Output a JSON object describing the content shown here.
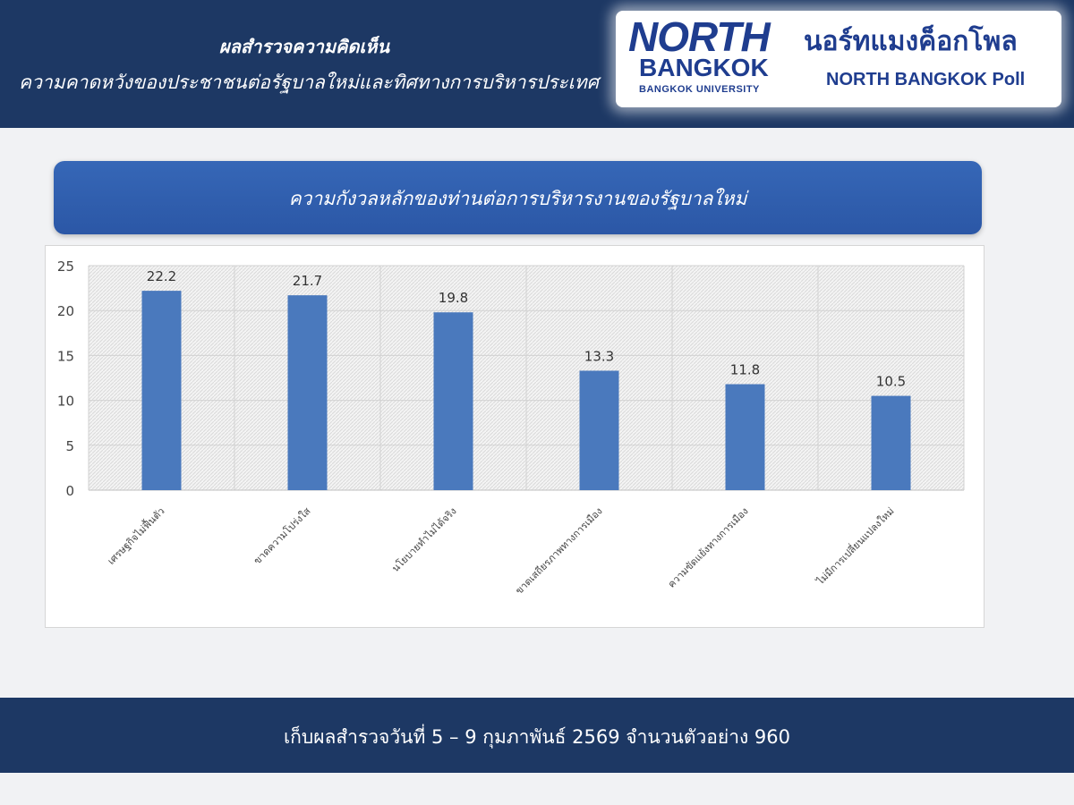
{
  "header": {
    "title": "ผลสำรวจความคิดเห็น",
    "subtitle": "ความคาดหวังของประชาชนต่อรัฐบาลใหม่และทิศทางการบริหารประเทศ"
  },
  "logo": {
    "north": "NORTH",
    "bangkok": "BANGKOK",
    "university": "BANGKOK UNIVERSITY",
    "thai_name": "นอร์ทแมงค็อกโพล",
    "english_name": "NORTH BANGKOK Poll"
  },
  "banner": {
    "title": "ความกังวลหลักของท่านต่อการบริหารงานของรัฐบาลใหม่"
  },
  "colors": {
    "header_bg": "#1d3864",
    "banner_bg": "#2f5eae",
    "bar": "#4a79bd"
  },
  "chart_data": {
    "type": "bar",
    "categories": [
      "เศรษฐกิจไม่ฟื้นตัว",
      "ขาดความโปร่งใส",
      "นโยบายทำไม่ได้จริง",
      "ขาดเสถียรภาพทางการเมือง",
      "ความขัดแย้งทางการเมือง",
      "ไม่มีการเปลี่ยนแปลงใหม่"
    ],
    "values": [
      22.2,
      21.7,
      19.8,
      13.3,
      11.8,
      10.5
    ],
    "value_labels": [
      "22.2",
      "21.7",
      "19.8",
      "13.3",
      "11.8",
      "10.5"
    ],
    "yticks": [
      0,
      5,
      10,
      15,
      20,
      25
    ],
    "ylim": [
      0,
      25
    ],
    "grid": true
  },
  "footer": {
    "text": "เก็บผลสำรวจวันที่  5 – 9 กุมภาพันธ์ 2569    จำนวนตัวอย่าง 960"
  }
}
